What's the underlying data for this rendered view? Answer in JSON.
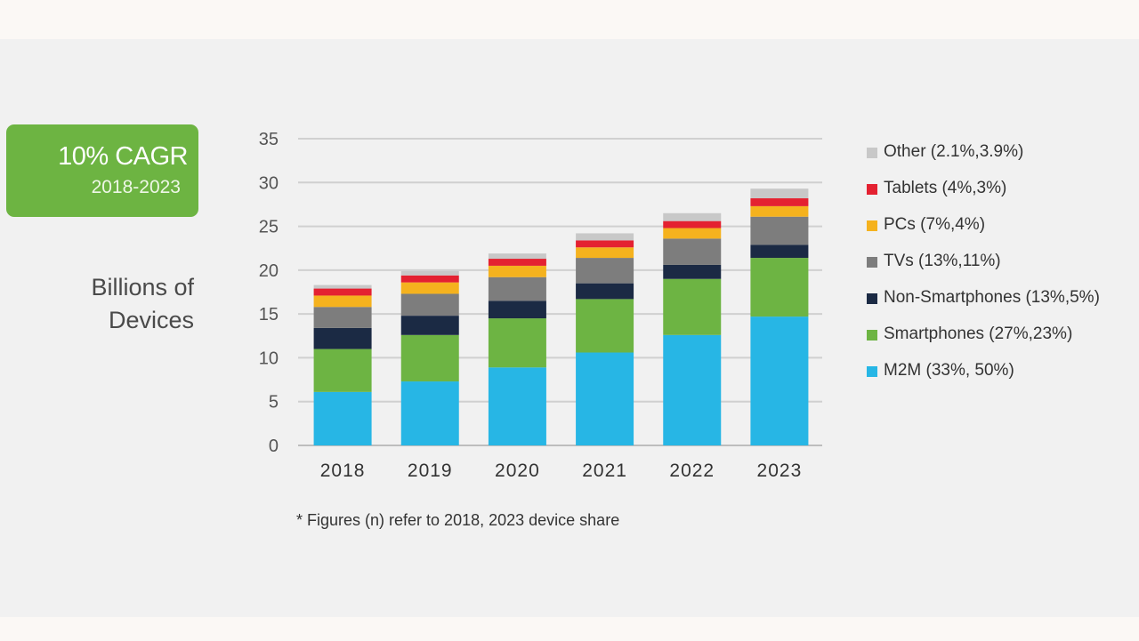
{
  "badge": {
    "title": "10% CAGR",
    "subtitle": "2018-2023"
  },
  "ylabel_lines": [
    "Billions of",
    "Devices"
  ],
  "footnote": "* Figures (n) refer to 2018, 2023 device share",
  "chart_data": {
    "type": "bar",
    "stacked": true,
    "categories": [
      "2018",
      "2019",
      "2020",
      "2021",
      "2022",
      "2023"
    ],
    "ylim": [
      0,
      35
    ],
    "yticks": [
      0,
      5,
      10,
      15,
      20,
      25,
      30,
      35
    ],
    "grid": true,
    "legend_position": "right",
    "ylabel": "Billions of Devices",
    "series": [
      {
        "name": "M2M (33%, 50%)",
        "color": "#27b6e5",
        "values": [
          6.1,
          7.3,
          8.9,
          10.6,
          12.6,
          14.7
        ]
      },
      {
        "name": "Smartphones (27%,23%)",
        "color": "#6db443",
        "values": [
          4.9,
          5.3,
          5.6,
          6.1,
          6.4,
          6.7
        ]
      },
      {
        "name": "Non-Smartphones (13%,5%)",
        "color": "#1b2a44",
        "values": [
          2.4,
          2.2,
          2.0,
          1.8,
          1.6,
          1.5
        ]
      },
      {
        "name": "TVs (13%,11%)",
        "color": "#7d7d7d",
        "values": [
          2.4,
          2.5,
          2.7,
          2.9,
          3.0,
          3.2
        ]
      },
      {
        "name": "PCs (7%,4%)",
        "color": "#f5b21e",
        "values": [
          1.3,
          1.3,
          1.3,
          1.2,
          1.2,
          1.2
        ]
      },
      {
        "name": "Tablets (4%,3%)",
        "color": "#e42131",
        "values": [
          0.8,
          0.8,
          0.8,
          0.8,
          0.8,
          0.9
        ]
      },
      {
        "name": "Other (2.1%,3.9%)",
        "color": "#c8c8c8",
        "values": [
          0.4,
          0.5,
          0.6,
          0.8,
          0.9,
          1.1
        ]
      }
    ]
  }
}
